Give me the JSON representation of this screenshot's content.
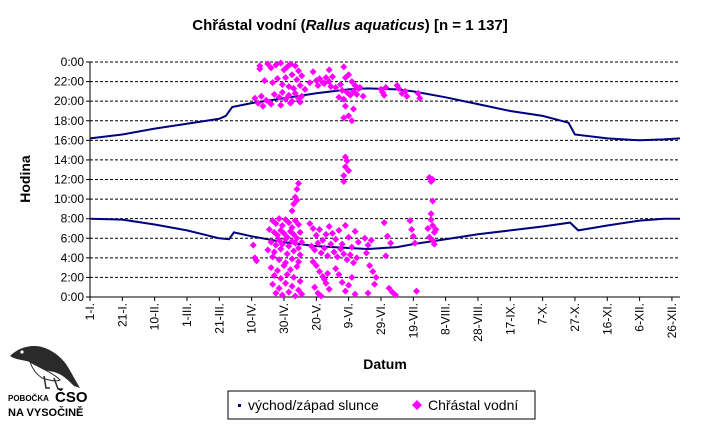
{
  "chart_data": {
    "type": "scatter",
    "title_parts": [
      "Chřástal vodní (",
      "Rallus aquaticus",
      ") [n = 1 137]"
    ],
    "xlabel": "Datum",
    "ylabel": "Hodina",
    "xlim": [
      0,
      365
    ],
    "ylim": [
      0,
      24
    ],
    "grid": "horizontal dashed",
    "legend_position": "bottom-center",
    "x_tick_labels": [
      {
        "day": 0,
        "label": "1-I."
      },
      {
        "day": 20,
        "label": "21-I."
      },
      {
        "day": 40,
        "label": "10-II."
      },
      {
        "day": 60,
        "label": "1-III."
      },
      {
        "day": 80,
        "label": "21-III."
      },
      {
        "day": 100,
        "label": "10-IV."
      },
      {
        "day": 120,
        "label": "30-IV."
      },
      {
        "day": 140,
        "label": "20-V."
      },
      {
        "day": 160,
        "label": "9-VI."
      },
      {
        "day": 180,
        "label": "29-VI."
      },
      {
        "day": 200,
        "label": "19-VII."
      },
      {
        "day": 220,
        "label": "8-VIII."
      },
      {
        "day": 240,
        "label": "28-VIII."
      },
      {
        "day": 260,
        "label": "17-IX."
      },
      {
        "day": 280,
        "label": "7-X."
      },
      {
        "day": 300,
        "label": "27-X."
      },
      {
        "day": 320,
        "label": "16-XI."
      },
      {
        "day": 340,
        "label": "6-XII."
      },
      {
        "day": 360,
        "label": "26-XII."
      }
    ],
    "y_tick_labels": [
      {
        "value": 0,
        "label": "0:00"
      },
      {
        "value": 2,
        "label": "2:00"
      },
      {
        "value": 4,
        "label": "4:00"
      },
      {
        "value": 6,
        "label": "6:00"
      },
      {
        "value": 8,
        "label": "8:00"
      },
      {
        "value": 10,
        "label": "10:00"
      },
      {
        "value": 12,
        "label": "12:00"
      },
      {
        "value": 14,
        "label": "14:00"
      },
      {
        "value": 16,
        "label": "16:00"
      },
      {
        "value": 18,
        "label": "18:00"
      },
      {
        "value": 20,
        "label": "20:00"
      },
      {
        "value": 22,
        "label": "22:00"
      },
      {
        "value": 24,
        "label": "0:00"
      }
    ],
    "series": [
      {
        "name": "východ/západ slunce",
        "type": "line",
        "color": "#000080",
        "sunrise": [
          [
            0,
            8.0
          ],
          [
            20,
            7.9
          ],
          [
            40,
            7.4
          ],
          [
            60,
            6.8
          ],
          [
            80,
            6.0
          ],
          [
            86,
            5.9
          ],
          [
            89,
            6.6
          ],
          [
            100,
            6.2
          ],
          [
            120,
            5.6
          ],
          [
            140,
            5.2
          ],
          [
            160,
            5.0
          ],
          [
            172,
            4.9
          ],
          [
            190,
            5.1
          ],
          [
            200,
            5.4
          ],
          [
            220,
            5.9
          ],
          [
            240,
            6.4
          ],
          [
            260,
            6.8
          ],
          [
            280,
            7.2
          ],
          [
            297,
            7.6
          ],
          [
            302,
            6.8
          ],
          [
            320,
            7.3
          ],
          [
            340,
            7.8
          ],
          [
            355,
            8.0
          ],
          [
            365,
            8.0
          ]
        ],
        "sunset": [
          [
            0,
            16.2
          ],
          [
            20,
            16.6
          ],
          [
            40,
            17.2
          ],
          [
            60,
            17.7
          ],
          [
            80,
            18.2
          ],
          [
            84,
            18.5
          ],
          [
            88,
            19.4
          ],
          [
            100,
            19.8
          ],
          [
            120,
            20.3
          ],
          [
            140,
            20.8
          ],
          [
            160,
            21.2
          ],
          [
            172,
            21.3
          ],
          [
            190,
            21.2
          ],
          [
            200,
            21.0
          ],
          [
            220,
            20.4
          ],
          [
            240,
            19.7
          ],
          [
            260,
            19.0
          ],
          [
            280,
            18.5
          ],
          [
            296,
            17.8
          ],
          [
            300,
            16.6
          ],
          [
            320,
            16.2
          ],
          [
            340,
            16.0
          ],
          [
            355,
            16.1
          ],
          [
            365,
            16.2
          ]
        ]
      },
      {
        "name": "Chřástal vodní",
        "type": "scatter",
        "color": "#ff00ff",
        "points": [
          [
            105,
            23.6
          ],
          [
            105,
            23.3
          ],
          [
            110,
            23.8
          ],
          [
            112,
            23.4
          ],
          [
            115,
            23.7
          ],
          [
            118,
            23.9
          ],
          [
            120,
            23.2
          ],
          [
            122,
            23.5
          ],
          [
            124,
            23.8
          ],
          [
            127,
            23.6
          ],
          [
            129,
            23.1
          ],
          [
            125,
            22.7
          ],
          [
            121,
            22.4
          ],
          [
            128,
            22.2
          ],
          [
            131,
            22.6
          ],
          [
            108,
            22.1
          ],
          [
            113,
            21.9
          ],
          [
            116,
            22.3
          ],
          [
            119,
            21.7
          ],
          [
            123,
            21.5
          ],
          [
            126,
            21.3
          ],
          [
            130,
            21.6
          ],
          [
            133,
            21.2
          ],
          [
            136,
            21.9
          ],
          [
            102,
            20.3
          ],
          [
            104,
            19.8
          ],
          [
            106,
            20.5
          ],
          [
            109,
            20.1
          ],
          [
            111,
            19.9
          ],
          [
            114,
            20.7
          ],
          [
            117,
            20.4
          ],
          [
            119,
            20.9
          ],
          [
            121,
            20.2
          ],
          [
            123,
            20.6
          ],
          [
            125,
            20.0
          ],
          [
            127,
            20.8
          ],
          [
            129,
            20.3
          ],
          [
            131,
            20.5
          ],
          [
            107,
            19.5
          ],
          [
            112,
            19.7
          ],
          [
            118,
            19.6
          ],
          [
            124,
            19.8
          ],
          [
            130,
            19.9
          ],
          [
            140,
            22.1
          ],
          [
            142,
            22.3
          ],
          [
            144,
            21.9
          ],
          [
            146,
            22.4
          ],
          [
            148,
            22.0
          ],
          [
            150,
            22.5
          ],
          [
            141,
            21.6
          ],
          [
            145,
            21.8
          ],
          [
            149,
            21.5
          ],
          [
            152,
            21.4
          ],
          [
            155,
            21.7
          ],
          [
            158,
            22.4
          ],
          [
            160,
            22.7
          ],
          [
            162,
            22.0
          ],
          [
            164,
            21.6
          ],
          [
            166,
            21.3
          ],
          [
            156,
            21.1
          ],
          [
            159,
            20.9
          ],
          [
            161,
            20.6
          ],
          [
            163,
            21.0
          ],
          [
            165,
            20.7
          ],
          [
            167,
            21.4
          ],
          [
            154,
            20.4
          ],
          [
            157,
            20.2
          ],
          [
            169,
            20.5
          ],
          [
            158,
            19.5
          ],
          [
            160,
            18.5
          ],
          [
            162,
            18.0
          ],
          [
            163,
            19.2
          ],
          [
            157,
            18.3
          ],
          [
            138,
            23.0
          ],
          [
            148,
            23.2
          ],
          [
            157,
            23.5
          ],
          [
            180,
            21.2
          ],
          [
            181,
            20.9
          ],
          [
            183,
            21.4
          ],
          [
            182,
            20.6
          ],
          [
            190,
            21.6
          ],
          [
            191,
            21.3
          ],
          [
            193,
            20.8
          ],
          [
            195,
            21.0
          ],
          [
            196,
            20.5
          ],
          [
            203,
            20.8
          ],
          [
            204,
            20.3
          ],
          [
            113,
            7.8
          ],
          [
            115,
            7.5
          ],
          [
            117,
            8.0
          ],
          [
            119,
            7.3
          ],
          [
            121,
            7.9
          ],
          [
            123,
            7.6
          ],
          [
            125,
            7.1
          ],
          [
            127,
            7.8
          ],
          [
            129,
            7.4
          ],
          [
            111,
            6.9
          ],
          [
            114,
            6.6
          ],
          [
            116,
            6.3
          ],
          [
            118,
            6.8
          ],
          [
            120,
            6.5
          ],
          [
            122,
            6.1
          ],
          [
            124,
            6.7
          ],
          [
            126,
            6.4
          ],
          [
            128,
            6.0
          ],
          [
            130,
            6.6
          ],
          [
            112,
            5.6
          ],
          [
            115,
            5.3
          ],
          [
            117,
            5.8
          ],
          [
            119,
            5.4
          ],
          [
            121,
            5.9
          ],
          [
            123,
            5.2
          ],
          [
            125,
            5.7
          ],
          [
            127,
            5.5
          ],
          [
            129,
            5.0
          ],
          [
            131,
            5.6
          ],
          [
            110,
            4.8
          ],
          [
            114,
            4.6
          ],
          [
            118,
            4.9
          ],
          [
            122,
            4.4
          ],
          [
            126,
            4.7
          ],
          [
            130,
            4.3
          ],
          [
            113,
            4.1
          ],
          [
            117,
            3.8
          ],
          [
            121,
            3.5
          ],
          [
            125,
            3.9
          ],
          [
            129,
            3.6
          ],
          [
            112,
            3.0
          ],
          [
            116,
            2.7
          ],
          [
            120,
            3.2
          ],
          [
            124,
            2.8
          ],
          [
            128,
            3.1
          ],
          [
            114,
            2.2
          ],
          [
            118,
            1.9
          ],
          [
            122,
            2.3
          ],
          [
            126,
            2.0
          ],
          [
            130,
            1.6
          ],
          [
            113,
            1.3
          ],
          [
            117,
            0.9
          ],
          [
            121,
            1.4
          ],
          [
            125,
            1.1
          ],
          [
            129,
            0.7
          ],
          [
            115,
            0.4
          ],
          [
            119,
            0.2
          ],
          [
            123,
            0.5
          ],
          [
            127,
            0.1
          ],
          [
            131,
            0.3
          ],
          [
            126,
            9.5
          ],
          [
            127,
            10.2
          ],
          [
            128,
            11.0
          ],
          [
            129,
            11.6
          ],
          [
            125,
            8.8
          ],
          [
            128,
            9.9
          ],
          [
            101,
            5.3
          ],
          [
            103,
            3.7
          ],
          [
            102,
            4.0
          ],
          [
            136,
            7.5
          ],
          [
            138,
            7.0
          ],
          [
            140,
            6.3
          ],
          [
            142,
            6.9
          ],
          [
            144,
            5.8
          ],
          [
            146,
            6.4
          ],
          [
            148,
            7.2
          ],
          [
            137,
            5.2
          ],
          [
            139,
            4.8
          ],
          [
            141,
            5.5
          ],
          [
            143,
            4.5
          ],
          [
            145,
            5.0
          ],
          [
            147,
            4.2
          ],
          [
            149,
            5.4
          ],
          [
            138,
            3.6
          ],
          [
            140,
            3.2
          ],
          [
            142,
            2.6
          ],
          [
            144,
            2.1
          ],
          [
            146,
            1.4
          ],
          [
            148,
            0.8
          ],
          [
            139,
            1.0
          ],
          [
            141,
            0.4
          ],
          [
            143,
            0.1
          ],
          [
            145,
            1.8
          ],
          [
            147,
            2.4
          ],
          [
            150,
            6.5
          ],
          [
            152,
            5.9
          ],
          [
            154,
            6.8
          ],
          [
            156,
            5.4
          ],
          [
            158,
            7.3
          ],
          [
            160,
            6.1
          ],
          [
            162,
            5.1
          ],
          [
            164,
            6.7
          ],
          [
            166,
            5.6
          ],
          [
            151,
            4.6
          ],
          [
            153,
            4.1
          ],
          [
            155,
            4.9
          ],
          [
            157,
            4.4
          ],
          [
            159,
            3.8
          ],
          [
            161,
            4.3
          ],
          [
            163,
            3.5
          ],
          [
            165,
            4.0
          ],
          [
            152,
            2.9
          ],
          [
            154,
            2.3
          ],
          [
            156,
            1.5
          ],
          [
            158,
            0.6
          ],
          [
            160,
            1.2
          ],
          [
            162,
            2.0
          ],
          [
            164,
            0.3
          ],
          [
            157,
            12.4
          ],
          [
            158,
            13.3
          ],
          [
            159,
            13.9
          ],
          [
            158,
            14.3
          ],
          [
            157,
            11.8
          ],
          [
            160,
            12.9
          ],
          [
            170,
            6.0
          ],
          [
            172,
            5.3
          ],
          [
            174,
            5.8
          ],
          [
            171,
            4.5
          ],
          [
            173,
            3.2
          ],
          [
            175,
            2.6
          ],
          [
            177,
            2.0
          ],
          [
            176,
            1.3
          ],
          [
            172,
            0.4
          ],
          [
            182,
            7.6
          ],
          [
            184,
            6.2
          ],
          [
            186,
            5.5
          ],
          [
            183,
            4.2
          ],
          [
            185,
            0.9
          ],
          [
            187,
            0.5
          ],
          [
            189,
            0.2
          ],
          [
            198,
            7.8
          ],
          [
            199,
            6.9
          ],
          [
            200,
            6.2
          ],
          [
            201,
            5.5
          ],
          [
            202,
            0.6
          ],
          [
            210,
            12.2
          ],
          [
            211,
            11.8
          ],
          [
            212,
            9.8
          ],
          [
            211,
            7.9
          ],
          [
            212,
            7.3
          ],
          [
            213,
            6.6
          ],
          [
            210,
            6.1
          ],
          [
            212,
            5.8
          ],
          [
            213,
            5.4
          ],
          [
            211,
            8.5
          ],
          [
            212,
            12.0
          ],
          [
            209,
            7.0
          ],
          [
            214,
            6.9
          ]
        ]
      }
    ],
    "logo": {
      "line1": "POBOČKA",
      "line1_big": "ČSO",
      "line2": "NA VYSOČINĚ"
    }
  }
}
